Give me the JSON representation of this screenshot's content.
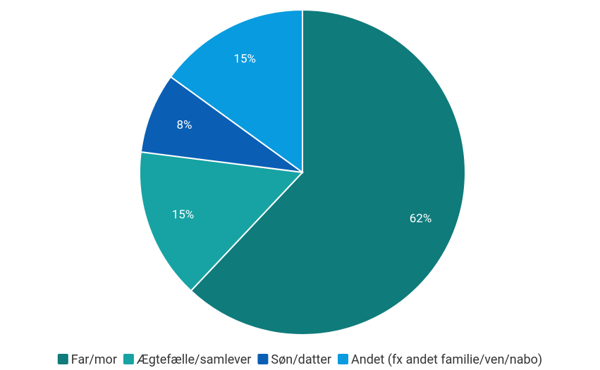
{
  "chart_data": {
    "type": "pie",
    "categories": [
      "Far/mor",
      "Ægtefælle/samlever",
      "Søn/datter",
      "Andet (fx andet familie/ven/nabo)"
    ],
    "values": [
      62,
      15,
      8,
      15
    ],
    "value_labels": [
      "62%",
      "15%",
      "8%",
      "15%"
    ],
    "colors": [
      "#0f7b7b",
      "#17a3a3",
      "#0a5fb4",
      "#089be0"
    ],
    "legend": "bottom"
  }
}
